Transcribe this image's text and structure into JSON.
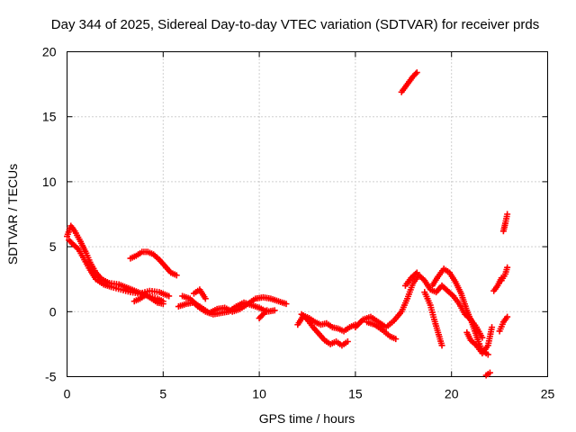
{
  "chart_data": {
    "type": "scatter",
    "title": "Day 344 of 2025, Sidereal Day-to-day VTEC variation (SDTVAR) for receiver prds",
    "xlabel": "GPS time / hours",
    "ylabel": "SDTVAR / TECUs",
    "xlim": [
      0,
      25
    ],
    "ylim": [
      -5,
      20
    ],
    "xticks": [
      "0",
      "5",
      "10",
      "15",
      "20",
      "25"
    ],
    "yticks": [
      "-5",
      "0",
      "5",
      "10",
      "15",
      "20"
    ],
    "grid": true,
    "marker": "+",
    "color": "#ff0000",
    "series": [
      {
        "name": "SDTVAR",
        "segments": [
          [
            [
              0.0,
              5.8
            ],
            [
              0.2,
              6.6
            ],
            [
              0.4,
              6.2
            ],
            [
              0.7,
              5.4
            ],
            [
              1.0,
              4.5
            ],
            [
              1.2,
              3.8
            ],
            [
              1.5,
              3.0
            ],
            [
              1.8,
              2.5
            ],
            [
              2.2,
              2.2
            ],
            [
              2.7,
              2.1
            ],
            [
              3.2,
              1.8
            ],
            [
              3.7,
              1.5
            ],
            [
              4.2,
              1.2
            ],
            [
              4.7,
              1.0
            ],
            [
              5.0,
              0.8
            ]
          ],
          [
            [
              0.1,
              5.5
            ],
            [
              0.3,
              5.2
            ],
            [
              0.6,
              4.8
            ],
            [
              0.9,
              4.0
            ],
            [
              1.2,
              3.2
            ],
            [
              1.5,
              2.5
            ],
            [
              1.9,
              2.1
            ],
            [
              2.3,
              1.9
            ],
            [
              2.8,
              1.7
            ],
            [
              3.3,
              1.5
            ],
            [
              3.8,
              1.4
            ],
            [
              4.3,
              1.6
            ],
            [
              4.8,
              1.5
            ],
            [
              5.3,
              1.2
            ]
          ],
          [
            [
              3.3,
              4.1
            ],
            [
              3.6,
              4.3
            ],
            [
              3.9,
              4.6
            ],
            [
              4.2,
              4.6
            ],
            [
              4.5,
              4.4
            ],
            [
              4.8,
              4.0
            ],
            [
              5.1,
              3.5
            ],
            [
              5.4,
              3.0
            ],
            [
              5.7,
              2.8
            ]
          ],
          [
            [
              3.5,
              0.8
            ],
            [
              3.8,
              1.0
            ],
            [
              4.1,
              1.3
            ],
            [
              4.4,
              1.0
            ],
            [
              4.7,
              0.7
            ],
            [
              5.0,
              0.6
            ]
          ],
          [
            [
              5.8,
              0.4
            ],
            [
              6.2,
              0.6
            ],
            [
              6.6,
              0.7
            ],
            [
              7.0,
              0.3
            ],
            [
              7.4,
              -0.1
            ],
            [
              7.8,
              0.2
            ],
            [
              8.2,
              0.3
            ],
            [
              8.6,
              0.0
            ],
            [
              9.0,
              0.2
            ],
            [
              9.4,
              0.6
            ],
            [
              9.8,
              1.0
            ],
            [
              10.2,
              1.1
            ],
            [
              10.6,
              1.0
            ],
            [
              11.0,
              0.8
            ],
            [
              11.4,
              0.6
            ]
          ],
          [
            [
              6.0,
              1.2
            ],
            [
              6.4,
              1.0
            ],
            [
              6.8,
              0.4
            ],
            [
              7.2,
              0.0
            ],
            [
              7.6,
              -0.2
            ],
            [
              8.0,
              -0.1
            ],
            [
              8.4,
              0.0
            ],
            [
              8.8,
              0.4
            ],
            [
              9.2,
              0.7
            ],
            [
              9.6,
              0.5
            ],
            [
              10.0,
              0.3
            ],
            [
              10.4,
              0.0
            ],
            [
              10.8,
              0.1
            ]
          ],
          [
            [
              10.0,
              -0.5
            ],
            [
              10.2,
              -0.2
            ],
            [
              10.4,
              0.1
            ]
          ],
          [
            [
              6.6,
              1.4
            ],
            [
              6.9,
              1.7
            ],
            [
              7.2,
              1.0
            ]
          ],
          [
            [
              12.0,
              -1.0
            ],
            [
              12.3,
              -0.3
            ],
            [
              12.6,
              -0.5
            ],
            [
              12.9,
              -0.8
            ],
            [
              13.2,
              -1.0
            ],
            [
              13.5,
              -0.9
            ],
            [
              13.8,
              -1.2
            ],
            [
              14.1,
              -1.3
            ],
            [
              14.4,
              -1.5
            ],
            [
              14.7,
              -1.2
            ],
            [
              15.0,
              -1.0
            ]
          ],
          [
            [
              12.2,
              -0.2
            ],
            [
              12.5,
              -0.6
            ],
            [
              12.8,
              -1.2
            ],
            [
              13.1,
              -1.7
            ],
            [
              13.4,
              -2.2
            ],
            [
              13.7,
              -2.5
            ],
            [
              14.0,
              -2.3
            ],
            [
              14.3,
              -2.6
            ],
            [
              14.6,
              -2.3
            ]
          ],
          [
            [
              15.0,
              -1.2
            ],
            [
              15.4,
              -0.6
            ],
            [
              15.8,
              -0.4
            ],
            [
              16.2,
              -0.8
            ],
            [
              16.6,
              -1.2
            ],
            [
              17.0,
              -0.7
            ],
            [
              17.4,
              0.0
            ],
            [
              17.7,
              1.0
            ],
            [
              18.0,
              2.2
            ],
            [
              18.3,
              2.8
            ],
            [
              18.6,
              2.4
            ],
            [
              18.9,
              1.7
            ],
            [
              19.2,
              1.5
            ],
            [
              19.5,
              2.0
            ],
            [
              19.8,
              1.6
            ],
            [
              20.1,
              1.2
            ],
            [
              20.4,
              0.6
            ],
            [
              20.7,
              -0.2
            ],
            [
              21.0,
              -0.6
            ],
            [
              21.3,
              -1.2
            ],
            [
              21.6,
              -2.0
            ]
          ],
          [
            [
              15.6,
              -0.8
            ],
            [
              16.0,
              -1.0
            ],
            [
              16.4,
              -1.4
            ],
            [
              16.8,
              -1.9
            ],
            [
              17.1,
              -2.1
            ]
          ],
          [
            [
              17.6,
              2.0
            ],
            [
              17.9,
              2.6
            ],
            [
              18.2,
              3.0
            ]
          ],
          [
            [
              18.6,
              1.5
            ],
            [
              18.9,
              0.5
            ],
            [
              19.1,
              -0.6
            ],
            [
              19.3,
              -1.6
            ],
            [
              19.5,
              -2.6
            ]
          ],
          [
            [
              19.0,
              2.0
            ],
            [
              19.3,
              2.7
            ],
            [
              19.6,
              3.3
            ],
            [
              19.9,
              3.0
            ],
            [
              20.2,
              2.3
            ],
            [
              20.5,
              1.4
            ],
            [
              20.8,
              0.1
            ],
            [
              21.1,
              -1.0
            ],
            [
              21.4,
              -2.3
            ],
            [
              21.6,
              -3.0
            ],
            [
              21.9,
              -3.3
            ]
          ],
          [
            [
              20.8,
              -1.6
            ],
            [
              21.0,
              -2.2
            ],
            [
              21.3,
              -2.6
            ],
            [
              21.6,
              -3.2
            ],
            [
              21.9,
              -2.6
            ],
            [
              22.1,
              -1.2
            ]
          ],
          [
            [
              17.4,
              16.9
            ],
            [
              17.6,
              17.3
            ],
            [
              17.8,
              17.7
            ],
            [
              18.0,
              18.1
            ],
            [
              18.2,
              18.4
            ]
          ],
          [
            [
              21.8,
              -4.9
            ],
            [
              22.0,
              -4.7
            ]
          ],
          [
            [
              22.2,
              1.6
            ],
            [
              22.4,
              2.0
            ],
            [
              22.6,
              2.6
            ]
          ],
          [
            [
              22.5,
              -1.5
            ],
            [
              22.7,
              -0.8
            ],
            [
              22.9,
              -0.4
            ]
          ],
          [
            [
              22.6,
              2.4
            ],
            [
              22.8,
              2.9
            ],
            [
              22.9,
              3.4
            ]
          ],
          [
            [
              22.7,
              6.2
            ],
            [
              22.8,
              6.8
            ],
            [
              22.9,
              7.5
            ]
          ]
        ]
      }
    ]
  }
}
